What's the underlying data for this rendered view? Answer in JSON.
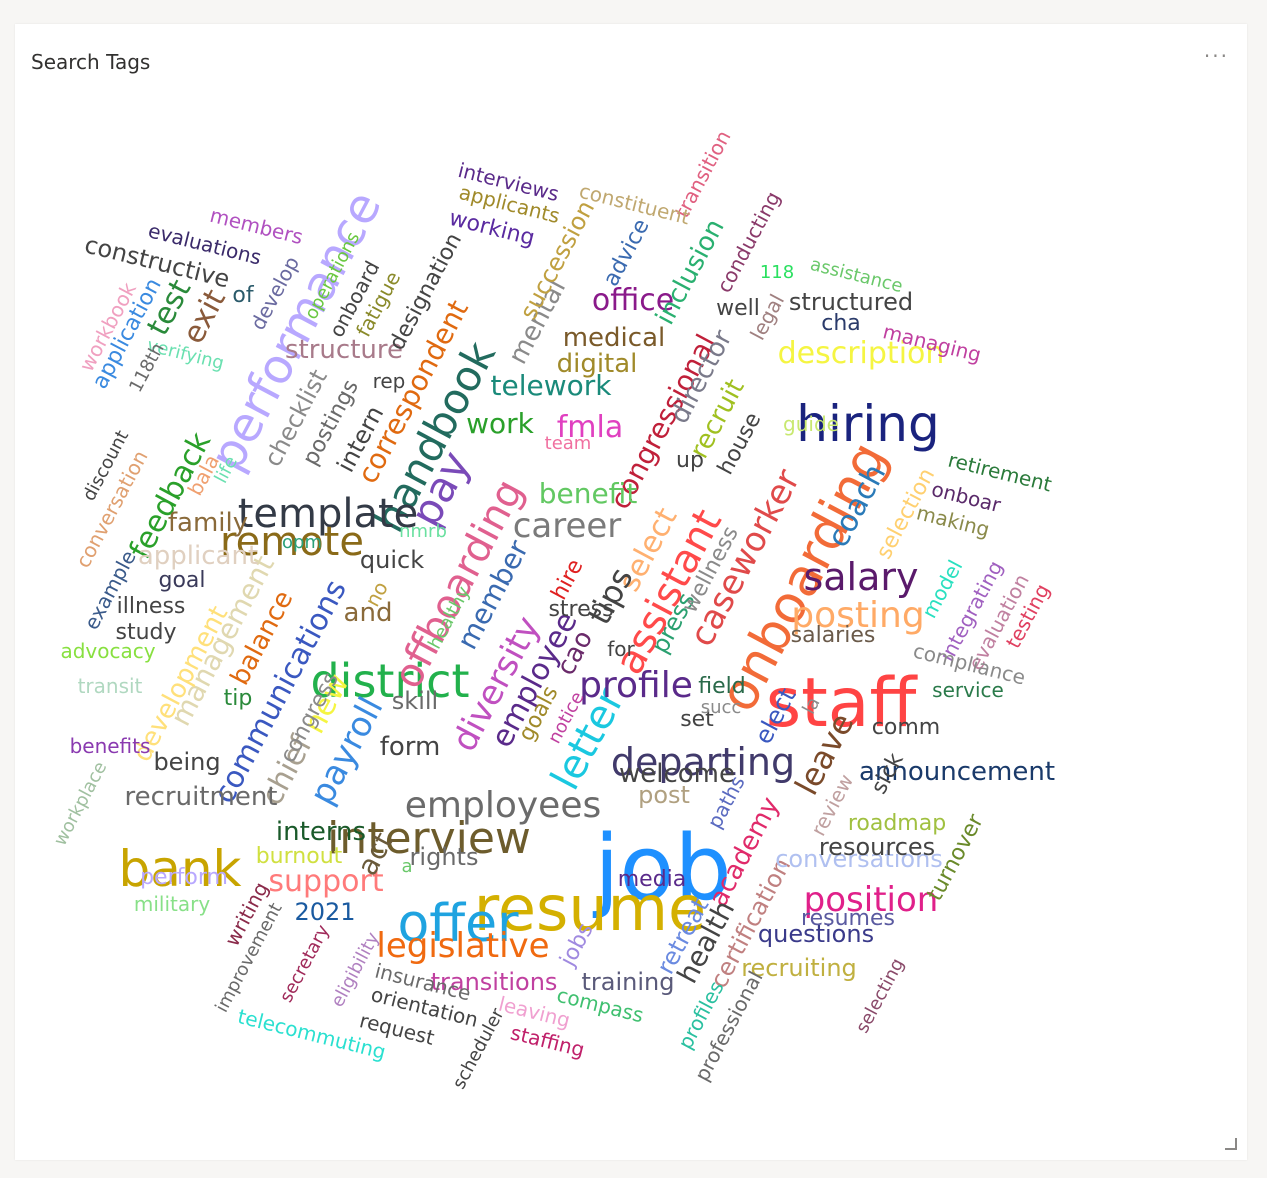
{
  "panel": {
    "title": "Search Tags",
    "more_label": "···"
  },
  "words": [
    {
      "text": "job",
      "color": "#1e90ff",
      "size": 90,
      "rotate": 0
    },
    {
      "text": "staff",
      "color": "#ff4444",
      "size": 68,
      "rotate": 0
    },
    {
      "text": "resume",
      "color": "#d4b000",
      "size": 62,
      "rotate": 0
    },
    {
      "text": "offer",
      "color": "#1fa3e0",
      "size": 52,
      "rotate": 0
    },
    {
      "text": "onboarding",
      "color": "#f26b38",
      "size": 52,
      "rotate": -62
    },
    {
      "text": "hiring",
      "color": "#1a237e",
      "size": 50,
      "rotate": 0
    },
    {
      "text": "bank",
      "color": "#c8a400",
      "size": 50,
      "rotate": 0
    },
    {
      "text": "performance",
      "color": "#b8a8ff",
      "size": 48,
      "rotate": -62
    },
    {
      "text": "district",
      "color": "#22b14c",
      "size": 46,
      "rotate": 0
    },
    {
      "text": "interview",
      "color": "#6d5c2c",
      "size": 44,
      "rotate": 0
    },
    {
      "text": "handbook",
      "color": "#226b5e",
      "size": 42,
      "rotate": -62
    },
    {
      "text": "offboarding",
      "color": "#e0608f",
      "size": 40,
      "rotate": -62
    },
    {
      "text": "assistant",
      "color": "#ff4a4a",
      "size": 40,
      "rotate": -62
    },
    {
      "text": "template",
      "color": "#333a46",
      "size": 40,
      "rotate": 0
    },
    {
      "text": "remote",
      "color": "#8a6a18",
      "size": 40,
      "rotate": 0
    },
    {
      "text": "letter",
      "color": "#1ac8e0",
      "size": 40,
      "rotate": -62
    },
    {
      "text": "departing",
      "color": "#413a6b",
      "size": 38,
      "rotate": 0
    },
    {
      "text": "employees",
      "color": "#6b6b6b",
      "size": 36,
      "rotate": 0
    },
    {
      "text": "salary",
      "color": "#5a1a6b",
      "size": 38,
      "rotate": 0
    },
    {
      "text": "posting",
      "color": "#ffaa66",
      "size": 36,
      "rotate": 0
    },
    {
      "text": "caseworker",
      "color": "#e04a4a",
      "size": 34,
      "rotate": -62
    },
    {
      "text": "diversity",
      "color": "#c050c0",
      "size": 34,
      "rotate": -62
    },
    {
      "text": "profile",
      "color": "#5a2a8a",
      "size": 36,
      "rotate": 0
    },
    {
      "text": "career",
      "color": "#7a7a7a",
      "size": 34,
      "rotate": 0
    },
    {
      "text": "position",
      "color": "#e0208a",
      "size": 34,
      "rotate": 0
    },
    {
      "text": "legislative",
      "color": "#f06a10",
      "size": 34,
      "rotate": 0
    },
    {
      "text": "pay",
      "color": "#7a4ab8",
      "size": 42,
      "rotate": -62
    },
    {
      "text": "payroll",
      "color": "#3a8ae0",
      "size": 34,
      "rotate": -62
    },
    {
      "text": "communications",
      "color": "#3a58c0",
      "size": 30,
      "rotate": -62
    },
    {
      "text": "support",
      "color": "#ff7a7a",
      "size": 30,
      "rotate": 0
    },
    {
      "text": "feedback",
      "color": "#2aa02a",
      "size": 30,
      "rotate": -62
    },
    {
      "text": "description",
      "color": "#f5f542",
      "size": 30,
      "rotate": 0
    },
    {
      "text": "leave",
      "color": "#7a4a2a",
      "size": 32,
      "rotate": -62
    },
    {
      "text": "coach",
      "color": "#2a7ab8",
      "size": 30,
      "rotate": -62
    },
    {
      "text": "telework",
      "color": "#1a8a7a",
      "size": 28,
      "rotate": 0
    },
    {
      "text": "congressional",
      "color": "#c0203a",
      "size": 28,
      "rotate": -62
    },
    {
      "text": "correspondent",
      "color": "#e06a10",
      "size": 28,
      "rotate": -62
    },
    {
      "text": "select",
      "color": "#ffb070",
      "size": 30,
      "rotate": -62
    },
    {
      "text": "employee",
      "color": "#5a2a8a",
      "size": 30,
      "rotate": -62
    },
    {
      "text": "member",
      "color": "#3a6ab0",
      "size": 28,
      "rotate": -62
    },
    {
      "text": "office",
      "color": "#8a1a8a",
      "size": 30,
      "rotate": 0
    },
    {
      "text": "tips",
      "color": "#444444",
      "size": 32,
      "rotate": -62
    },
    {
      "text": "benefit",
      "color": "#62c862",
      "size": 28,
      "rotate": 0
    },
    {
      "text": "fmla",
      "color": "#e040c0",
      "size": 30,
      "rotate": 0
    },
    {
      "text": "digital",
      "color": "#a08a2a",
      "size": 26,
      "rotate": 0
    },
    {
      "text": "medical",
      "color": "#7a5a2a",
      "size": 26,
      "rotate": 0
    },
    {
      "text": "management",
      "color": "#e0d8b0",
      "size": 28,
      "rotate": -62
    },
    {
      "text": "development",
      "color": "#ffe07a",
      "size": 26,
      "rotate": -62
    },
    {
      "text": "balance",
      "color": "#e06a10",
      "size": 26,
      "rotate": -62
    },
    {
      "text": "applicant",
      "color": "#e0d0c0",
      "size": 26,
      "rotate": 0
    },
    {
      "text": "family",
      "color": "#8a6a3a",
      "size": 26,
      "rotate": 0
    },
    {
      "text": "new",
      "color": "#f5f542",
      "size": 30,
      "rotate": -62
    },
    {
      "text": "chief",
      "color": "#a8a090",
      "size": 30,
      "rotate": -62
    },
    {
      "text": "act",
      "color": "#6a5a3a",
      "size": 28,
      "rotate": -62
    },
    {
      "text": "structure",
      "color": "#a87a8a",
      "size": 26,
      "rotate": 0
    },
    {
      "text": "mental",
      "color": "#8a8a8a",
      "size": 26,
      "rotate": -62
    },
    {
      "text": "succession",
      "color": "#c0a040",
      "size": 24,
      "rotate": -62
    },
    {
      "text": "work",
      "color": "#2aa02a",
      "size": 28,
      "rotate": 0
    },
    {
      "text": "director",
      "color": "#7a7a8a",
      "size": 26,
      "rotate": -62
    },
    {
      "text": "recruit",
      "color": "#a0c020",
      "size": 26,
      "rotate": -62
    },
    {
      "text": "inclusion",
      "color": "#2ab070",
      "size": 26,
      "rotate": -62
    },
    {
      "text": "structured",
      "color": "#444444",
      "size": 24,
      "rotate": 0
    },
    {
      "text": "academy",
      "color": "#e02a6a",
      "size": 26,
      "rotate": -62
    },
    {
      "text": "health",
      "color": "#444444",
      "size": 28,
      "rotate": -62
    },
    {
      "text": "retreat",
      "color": "#6a8ae0",
      "size": 24,
      "rotate": -62
    },
    {
      "text": "certification",
      "color": "#c08080",
      "size": 24,
      "rotate": -62
    },
    {
      "text": "conversations",
      "color": "#b0c0f0",
      "size": 24,
      "rotate": 0
    },
    {
      "text": "resources",
      "color": "#444444",
      "size": 24,
      "rotate": 0
    },
    {
      "text": "announcement",
      "color": "#1a3a6a",
      "size": 26,
      "rotate": 0
    },
    {
      "text": "recruitment",
      "color": "#6a6a6a",
      "size": 26,
      "rotate": 0
    },
    {
      "text": "welcome",
      "color": "#444444",
      "size": 26,
      "rotate": 0
    },
    {
      "text": "interns",
      "color": "#1a5a2a",
      "size": 26,
      "rotate": 0
    },
    {
      "text": "transitions",
      "color": "#c040a0",
      "size": 24,
      "rotate": 0
    },
    {
      "text": "training",
      "color": "#5a5a7a",
      "size": 24,
      "rotate": 0
    },
    {
      "text": "questions",
      "color": "#3a3a8a",
      "size": 24,
      "rotate": 0
    },
    {
      "text": "recruiting",
      "color": "#c0b040",
      "size": 24,
      "rotate": 0
    },
    {
      "text": "exit",
      "color": "#8a5a3a",
      "size": 30,
      "rotate": -62
    },
    {
      "text": "test",
      "color": "#2a8a3a",
      "size": 30,
      "rotate": -62
    },
    {
      "text": "constructive",
      "color": "#444444",
      "size": 24,
      "rotate": 14
    },
    {
      "text": "form",
      "color": "#444444",
      "size": 26,
      "rotate": 0
    },
    {
      "text": "being",
      "color": "#444444",
      "size": 24,
      "rotate": 0
    },
    {
      "text": "burnout",
      "color": "#d0e040",
      "size": 22,
      "rotate": 0
    },
    {
      "text": "perform",
      "color": "#b8a8ff",
      "size": 22,
      "rotate": 0
    },
    {
      "text": "military",
      "color": "#88e088",
      "size": 20,
      "rotate": 0
    },
    {
      "text": "2021",
      "color": "#1a5aa0",
      "size": 24,
      "rotate": 0
    },
    {
      "text": "rights",
      "color": "#6a6a6a",
      "size": 24,
      "rotate": 0
    },
    {
      "text": "media",
      "color": "#5a2a8a",
      "size": 22,
      "rotate": 0
    },
    {
      "text": "post",
      "color": "#b0a080",
      "size": 24,
      "rotate": 0
    },
    {
      "text": "goal",
      "color": "#3a3a5a",
      "size": 22,
      "rotate": 0
    },
    {
      "text": "illness",
      "color": "#444444",
      "size": 22,
      "rotate": 0
    },
    {
      "text": "study",
      "color": "#444444",
      "size": 22,
      "rotate": 0
    },
    {
      "text": "advocacy",
      "color": "#88e040",
      "size": 20,
      "rotate": 0
    },
    {
      "text": "transit",
      "color": "#b0d8c0",
      "size": 20,
      "rotate": 0
    },
    {
      "text": "benefits",
      "color": "#8a3ab0",
      "size": 20,
      "rotate": 0
    },
    {
      "text": "tip",
      "color": "#2a8a3a",
      "size": 22,
      "rotate": 0
    },
    {
      "text": "skill",
      "color": "#6a6a6a",
      "size": 24,
      "rotate": 0
    },
    {
      "text": "congress",
      "color": "#8a8a8a",
      "size": 22,
      "rotate": -62
    },
    {
      "text": "quick",
      "color": "#444444",
      "size": 24,
      "rotate": 0
    },
    {
      "text": "and",
      "color": "#8a6a3a",
      "size": 26,
      "rotate": 0
    },
    {
      "text": "no",
      "color": "#c0a040",
      "size": 20,
      "rotate": -62
    },
    {
      "text": "healthy",
      "color": "#6ac86a",
      "size": 18,
      "rotate": -62
    },
    {
      "text": "nmrb",
      "color": "#6ae0a0",
      "size": 18,
      "rotate": 0
    },
    {
      "text": "opm",
      "color": "#2aa07a",
      "size": 18,
      "rotate": 0
    },
    {
      "text": "goals",
      "color": "#a08a2a",
      "size": 22,
      "rotate": -62
    },
    {
      "text": "notice",
      "color": "#c040a0",
      "size": 18,
      "rotate": -62
    },
    {
      "text": "cao",
      "color": "#6a2a6a",
      "size": 26,
      "rotate": -62
    },
    {
      "text": "stress",
      "color": "#444444",
      "size": 22,
      "rotate": 0
    },
    {
      "text": "for",
      "color": "#444444",
      "size": 20,
      "rotate": 0
    },
    {
      "text": "hire",
      "color": "#e02020",
      "size": 22,
      "rotate": -62
    },
    {
      "text": "press",
      "color": "#2aa070",
      "size": 24,
      "rotate": -62
    },
    {
      "text": "wellness",
      "color": "#8a8a8a",
      "size": 22,
      "rotate": -62
    },
    {
      "text": "set",
      "color": "#444444",
      "size": 22,
      "rotate": 0
    },
    {
      "text": "succ",
      "color": "#8a8a8a",
      "size": 18,
      "rotate": 0
    },
    {
      "text": "field",
      "color": "#2a6a4a",
      "size": 22,
      "rotate": 0
    },
    {
      "text": "elect",
      "color": "#3a58c0",
      "size": 24,
      "rotate": -62
    },
    {
      "text": "la",
      "color": "#8a8a8a",
      "size": 18,
      "rotate": -62
    },
    {
      "text": "comm",
      "color": "#444444",
      "size": 22,
      "rotate": 0
    },
    {
      "text": "sick",
      "color": "#444444",
      "size": 22,
      "rotate": -62
    },
    {
      "text": "roadmap",
      "color": "#a0c040",
      "size": 22,
      "rotate": 0
    },
    {
      "text": "review",
      "color": "#c0a0a0",
      "size": 20,
      "rotate": -62
    },
    {
      "text": "paths",
      "color": "#5a6ac0",
      "size": 20,
      "rotate": -62
    },
    {
      "text": "up",
      "color": "#444444",
      "size": 22,
      "rotate": 0
    },
    {
      "text": "house",
      "color": "#444444",
      "size": 22,
      "rotate": -62
    },
    {
      "text": "guide",
      "color": "#c8e870",
      "size": 20,
      "rotate": 0
    },
    {
      "text": "team",
      "color": "#f070a0",
      "size": 18,
      "rotate": 0
    },
    {
      "text": "well",
      "color": "#444444",
      "size": 22,
      "rotate": 0
    },
    {
      "text": "legal",
      "color": "#a08080",
      "size": 20,
      "rotate": -62
    },
    {
      "text": "cha",
      "color": "#2a3a6a",
      "size": 22,
      "rotate": 0
    },
    {
      "text": "managing",
      "color": "#c040a0",
      "size": 20,
      "rotate": 14
    },
    {
      "text": "assistance",
      "color": "#6ac86a",
      "size": 18,
      "rotate": 14
    },
    {
      "text": "118",
      "color": "#2ae060",
      "size": 18,
      "rotate": 0
    },
    {
      "text": "conducting",
      "color": "#8a3a6a",
      "size": 20,
      "rotate": -62
    },
    {
      "text": "advice",
      "color": "#3a6ab0",
      "size": 22,
      "rotate": -62
    },
    {
      "text": "transition",
      "color": "#e06080",
      "size": 20,
      "rotate": -62
    },
    {
      "text": "constituent",
      "color": "#c0a870",
      "size": 20,
      "rotate": 14
    },
    {
      "text": "interviews",
      "color": "#5a2a8a",
      "size": 20,
      "rotate": 14
    },
    {
      "text": "applicants",
      "color": "#a08a2a",
      "size": 20,
      "rotate": 14
    },
    {
      "text": "working",
      "color": "#5a2aa0",
      "size": 22,
      "rotate": 14
    },
    {
      "text": "members",
      "color": "#b050c0",
      "size": 20,
      "rotate": 14
    },
    {
      "text": "evaluations",
      "color": "#3a2a6a",
      "size": 20,
      "rotate": 14
    },
    {
      "text": "designation",
      "color": "#444444",
      "size": 22,
      "rotate": -62
    },
    {
      "text": "fatigue",
      "color": "#8a8a2a",
      "size": 20,
      "rotate": -62
    },
    {
      "text": "onboard",
      "color": "#444444",
      "size": 20,
      "rotate": -62
    },
    {
      "text": "operations",
      "color": "#6ac840",
      "size": 18,
      "rotate": -62
    },
    {
      "text": "develop",
      "color": "#6a6aa0",
      "size": 20,
      "rotate": -62
    },
    {
      "text": "of",
      "color": "#2a5a6a",
      "size": 22,
      "rotate": 0
    },
    {
      "text": "application",
      "color": "#3a8ae0",
      "size": 22,
      "rotate": -62
    },
    {
      "text": "workbook",
      "color": "#f0a0c0",
      "size": 20,
      "rotate": -62
    },
    {
      "text": "verifying",
      "color": "#6ae0b0",
      "size": 18,
      "rotate": 14
    },
    {
      "text": "118th",
      "color": "#6a6a6a",
      "size": 18,
      "rotate": -62
    },
    {
      "text": "checklist",
      "color": "#8a8a8a",
      "size": 24,
      "rotate": -62
    },
    {
      "text": "postings",
      "color": "#6a6a6a",
      "size": 22,
      "rotate": -62
    },
    {
      "text": "rep",
      "color": "#444444",
      "size": 20,
      "rotate": 0
    },
    {
      "text": "intern",
      "color": "#444444",
      "size": 24,
      "rotate": -62
    },
    {
      "text": "discount",
      "color": "#444444",
      "size": 18,
      "rotate": -62
    },
    {
      "text": "conversation",
      "color": "#e0a070",
      "size": 20,
      "rotate": -62
    },
    {
      "text": "bala",
      "color": "#f0a070",
      "size": 20,
      "rotate": -62
    },
    {
      "text": "life",
      "color": "#6ae0b0",
      "size": 18,
      "rotate": -62
    },
    {
      "text": "example",
      "color": "#3a5a8a",
      "size": 20,
      "rotate": -62
    },
    {
      "text": "workplace",
      "color": "#a0c0a0",
      "size": 18,
      "rotate": -62
    },
    {
      "text": "writing",
      "color": "#8a2a4a",
      "size": 20,
      "rotate": -62
    },
    {
      "text": "improvement",
      "color": "#6a6a6a",
      "size": 18,
      "rotate": -62
    },
    {
      "text": "secretary",
      "color": "#a02a5a",
      "size": 18,
      "rotate": -62
    },
    {
      "text": "eligibility",
      "color": "#b080c0",
      "size": 18,
      "rotate": -62
    },
    {
      "text": "telecommuting",
      "color": "#2ae0d0",
      "size": 20,
      "rotate": 14
    },
    {
      "text": "insurance",
      "color": "#6a6a6a",
      "size": 20,
      "rotate": 14
    },
    {
      "text": "orientation",
      "color": "#444444",
      "size": 20,
      "rotate": 14
    },
    {
      "text": "request",
      "color": "#444444",
      "size": 20,
      "rotate": 14
    },
    {
      "text": "scheduler",
      "color": "#444444",
      "size": 18,
      "rotate": -62
    },
    {
      "text": "leaving",
      "color": "#f0a0d0",
      "size": 20,
      "rotate": 14
    },
    {
      "text": "staffing",
      "color": "#c0206a",
      "size": 20,
      "rotate": 14
    },
    {
      "text": "compass",
      "color": "#40c070",
      "size": 20,
      "rotate": 14
    },
    {
      "text": "jobs",
      "color": "#a08ae0",
      "size": 22,
      "rotate": -62
    },
    {
      "text": "a",
      "color": "#6ac86a",
      "size": 18,
      "rotate": 0
    },
    {
      "text": "profiles",
      "color": "#2ac0a0",
      "size": 20,
      "rotate": -62
    },
    {
      "text": "professional",
      "color": "#6a6a6a",
      "size": 20,
      "rotate": -62
    },
    {
      "text": "resumes",
      "color": "#5a5aa0",
      "size": 22,
      "rotate": 0
    },
    {
      "text": "selecting",
      "color": "#8a4a6a",
      "size": 18,
      "rotate": -62
    },
    {
      "text": "turnover",
      "color": "#6a8a2a",
      "size": 22,
      "rotate": -62
    },
    {
      "text": "retirement",
      "color": "#2a7a3a",
      "size": 20,
      "rotate": 14
    },
    {
      "text": "onboar",
      "color": "#5a2a6a",
      "size": 20,
      "rotate": 14
    },
    {
      "text": "making",
      "color": "#8a8a4a",
      "size": 20,
      "rotate": 14
    },
    {
      "text": "selection",
      "color": "#ffd070",
      "size": 22,
      "rotate": -62
    },
    {
      "text": "model",
      "color": "#2ae0c0",
      "size": 20,
      "rotate": -62
    },
    {
      "text": "integrating",
      "color": "#a060c0",
      "size": 20,
      "rotate": -62
    },
    {
      "text": "evaluation",
      "color": "#c080a0",
      "size": 20,
      "rotate": -62
    },
    {
      "text": "testing",
      "color": "#e04060",
      "size": 20,
      "rotate": -62
    },
    {
      "text": "salaries",
      "color": "#6a5a4a",
      "size": 22,
      "rotate": 0
    },
    {
      "text": "compliance",
      "color": "#8a8a8a",
      "size": 20,
      "rotate": 14
    },
    {
      "text": "service",
      "color": "#2a7a4a",
      "size": 20,
      "rotate": 0
    }
  ]
}
